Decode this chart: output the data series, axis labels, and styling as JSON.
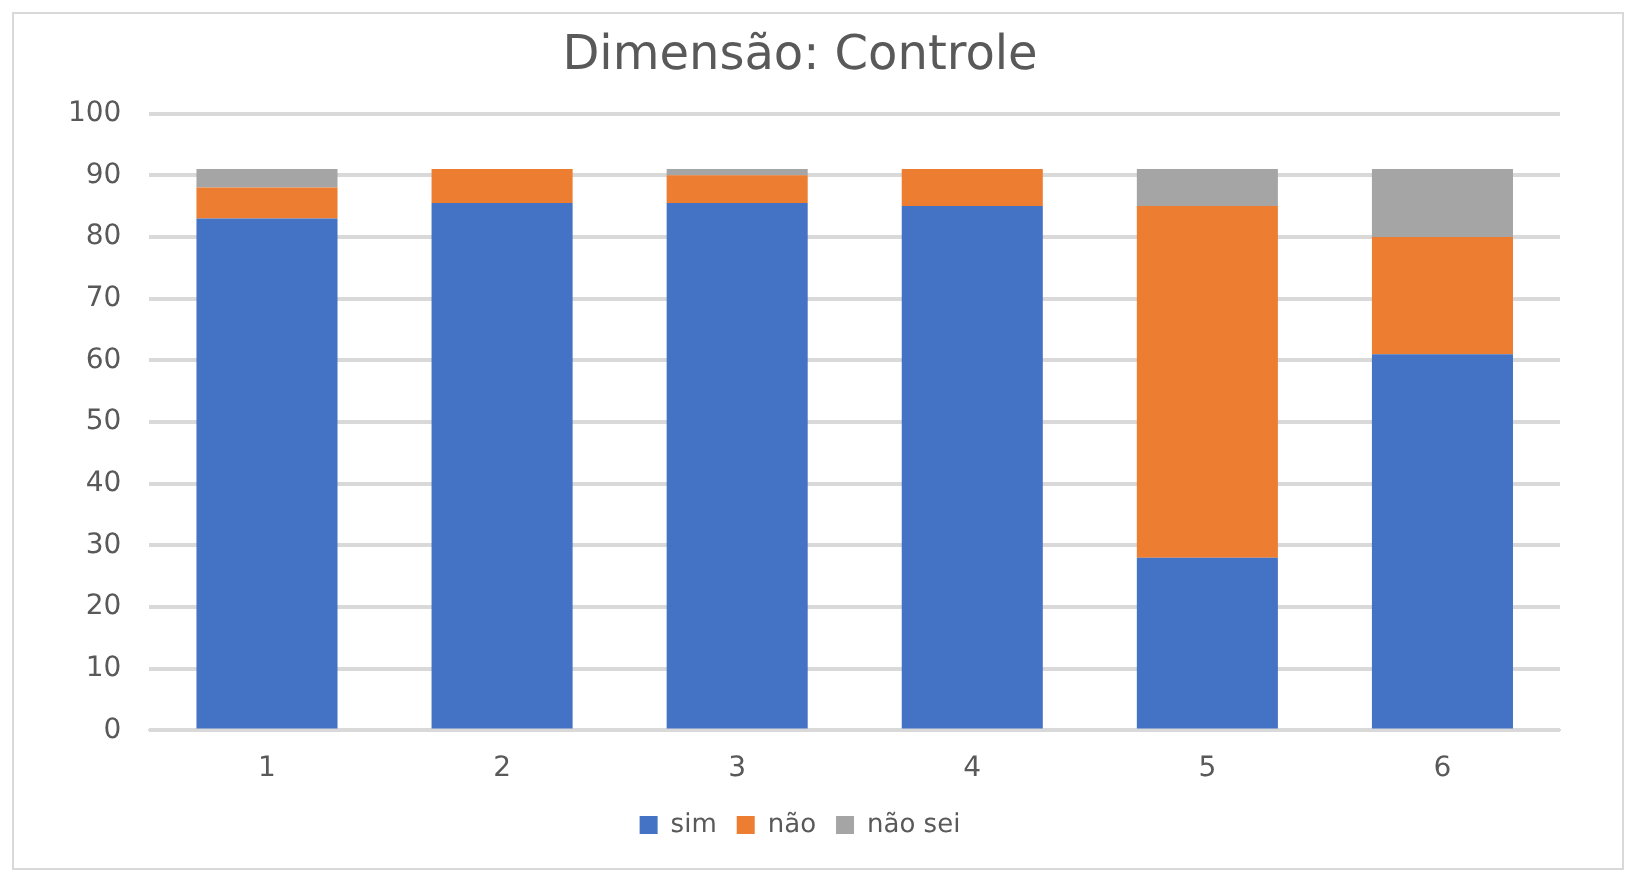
{
  "chart_data": {
    "type": "bar",
    "title": "Dimensão: Controle",
    "stacked": true,
    "categories": [
      "1",
      "2",
      "3",
      "4",
      "5",
      "6"
    ],
    "series": [
      {
        "name": "sim",
        "color": "#4472c4",
        "values": [
          83,
          85.5,
          85.5,
          85,
          28,
          61
        ]
      },
      {
        "name": "não",
        "color": "#ed7d31",
        "values": [
          5,
          5.5,
          4.5,
          6,
          57,
          19
        ]
      },
      {
        "name": "não sei",
        "color": "#a5a5a5",
        "values": [
          3,
          0,
          1,
          0,
          6,
          11
        ]
      }
    ],
    "ylim": [
      0,
      100
    ],
    "yticks": [
      0,
      10,
      20,
      30,
      40,
      50,
      60,
      70,
      80,
      90,
      100
    ],
    "grid": "y",
    "legend": "bottom"
  }
}
